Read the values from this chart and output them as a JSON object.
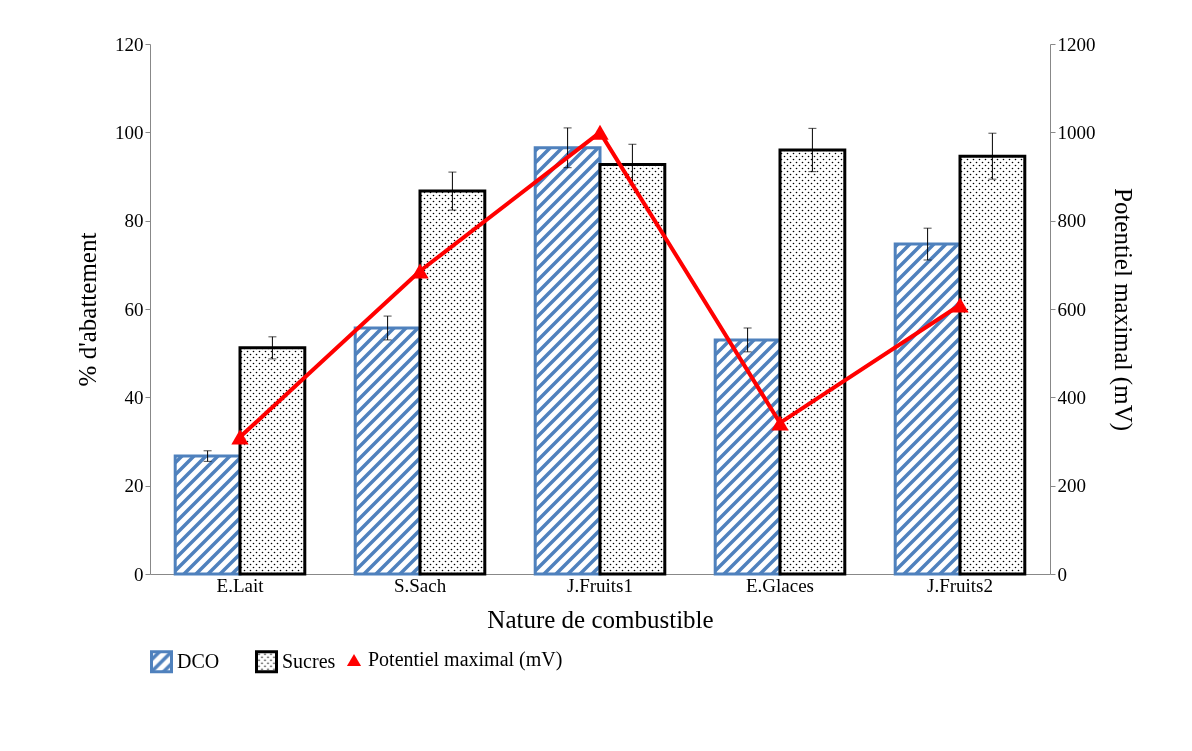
{
  "chart_data": {
    "type": "bar",
    "xlabel": "Nature de combustible",
    "ylabel": "% d'abattement",
    "y2label": "Potentiel maximal (mV)",
    "categories": [
      "E.Lait",
      "S.Sach",
      "J.Fruits1",
      "E.Glaces",
      "J.Fruits2"
    ],
    "series": [
      {
        "name": "DCO",
        "color": "#4f81bd",
        "values": [
          26.7,
          55.7,
          96.5,
          53,
          74.7
        ],
        "errors": [
          1.2,
          2.7,
          4.5,
          2.7,
          3.6
        ]
      },
      {
        "name": "Sucres",
        "color": "#000000",
        "values": [
          51.2,
          86.7,
          92.7,
          96,
          94.6
        ],
        "errors": [
          2.5,
          4.3,
          4.6,
          4.9,
          5.2
        ]
      },
      {
        "name": "Potentiel maximal (mV)",
        "type": "line",
        "axis": "y2",
        "color": "#ff0000",
        "marker": "triangle",
        "values": [
          310,
          686,
          1000,
          342,
          609
        ]
      }
    ],
    "ylim": [
      0,
      120
    ],
    "yticks": [
      0,
      20,
      40,
      60,
      80,
      100,
      120
    ],
    "y2lim": [
      0,
      1200
    ],
    "y2ticks": [
      0,
      200,
      400,
      600,
      800,
      1000,
      1200
    ],
    "grid": false,
    "legend": "bottom"
  }
}
